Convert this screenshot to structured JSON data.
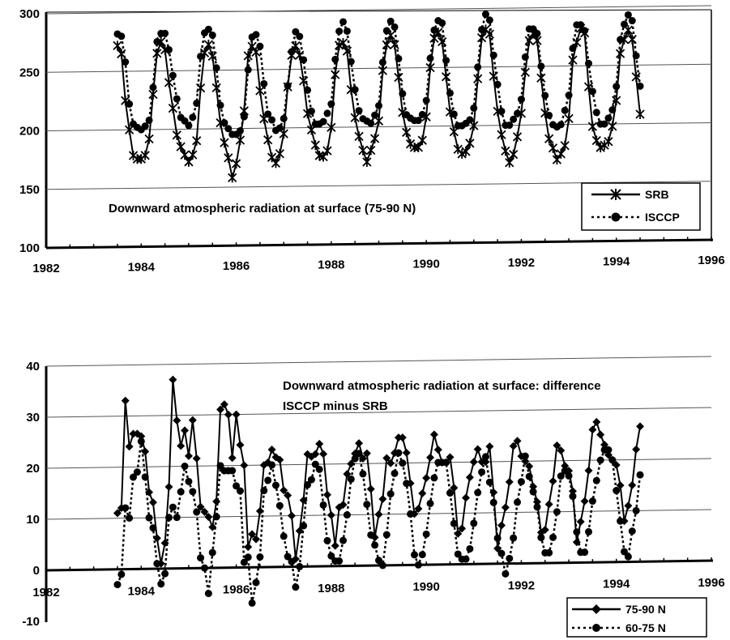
{
  "chart_data": [
    {
      "type": "line",
      "title": "Downward atmospheric radiation at surface (75-90 N)",
      "xlim": [
        1982,
        1996
      ],
      "ylim": [
        100,
        300
      ],
      "x_ticks": [
        "1982",
        "1984",
        "1986",
        "1988",
        "1990",
        "1992",
        "1994",
        "1996"
      ],
      "y_ticks": [
        "100",
        "150",
        "200",
        "250",
        "300"
      ],
      "grid": true,
      "legend_position": "bottom-right",
      "series": [
        {
          "name": "SRB",
          "color": "#000000",
          "marker": "asterisk",
          "line": "solid",
          "x_start": 1983.5,
          "values": [
            272,
            265,
            225,
            200,
            178,
            175,
            175,
            178,
            192,
            230,
            265,
            275,
            268,
            240,
            218,
            195,
            185,
            178,
            172,
            178,
            190,
            235,
            265,
            272,
            262,
            235,
            205,
            188,
            175,
            158,
            170,
            190,
            215,
            262,
            270,
            265,
            232,
            208,
            190,
            175,
            170,
            178,
            195,
            235,
            262,
            270,
            262,
            240,
            212,
            198,
            185,
            176,
            175,
            180,
            200,
            245,
            270,
            272,
            265,
            232,
            208,
            192,
            180,
            170,
            180,
            190,
            205,
            248,
            270,
            278,
            270,
            242,
            212,
            195,
            185,
            182,
            182,
            188,
            208,
            250,
            275,
            280,
            272,
            242,
            212,
            195,
            180,
            176,
            178,
            185,
            200,
            240,
            275,
            282,
            278,
            242,
            212,
            192,
            178,
            168,
            175,
            190,
            210,
            245,
            272,
            278,
            272,
            240,
            210,
            188,
            180,
            170,
            175,
            182,
            205,
            255,
            270,
            282,
            278,
            232,
            198,
            186,
            180,
            182,
            185,
            198,
            220,
            260,
            272,
            280,
            272,
            240,
            208
          ]
        },
        {
          "name": "ISCCP",
          "color": "#000000",
          "marker": "circle",
          "line": "dotted",
          "x_start": 1983.5,
          "values": [
            282,
            280,
            258,
            222,
            205,
            202,
            200,
            203,
            208,
            236,
            275,
            282,
            282,
            268,
            246,
            226,
            210,
            207,
            203,
            210,
            222,
            262,
            282,
            285,
            280,
            252,
            220,
            205,
            200,
            195,
            195,
            198,
            210,
            250,
            278,
            280,
            270,
            238,
            212,
            207,
            198,
            200,
            208,
            236,
            265,
            282,
            278,
            258,
            232,
            214,
            203,
            203,
            205,
            212,
            220,
            258,
            282,
            290,
            282,
            256,
            232,
            214,
            207,
            205,
            203,
            210,
            218,
            255,
            282,
            290,
            285,
            258,
            228,
            210,
            207,
            205,
            205,
            210,
            222,
            258,
            282,
            290,
            288,
            256,
            228,
            210,
            200,
            200,
            202,
            205,
            215,
            250,
            282,
            295,
            290,
            260,
            235,
            212,
            200,
            200,
            205,
            210,
            222,
            258,
            282,
            282,
            278,
            250,
            225,
            208,
            200,
            198,
            200,
            212,
            225,
            265,
            285,
            285,
            280,
            252,
            228,
            210,
            200,
            200,
            205,
            212,
            232,
            272,
            285,
            293,
            288,
            258,
            232
          ]
        }
      ]
    },
    {
      "type": "line",
      "title": "Downward atmospheric radiation at surface: difference ISCCP minus SRB",
      "xlim": [
        1982,
        1996
      ],
      "ylim": [
        -10,
        40
      ],
      "x_ticks": [
        "1982",
        "1984",
        "1986",
        "1988",
        "1990",
        "1992",
        "1994",
        "1996"
      ],
      "y_ticks": [
        "-10",
        "0",
        "10",
        "20",
        "30",
        "40"
      ],
      "grid": true,
      "legend_position": "bottom-right",
      "series": [
        {
          "name": "75-90 N",
          "color": "#000000",
          "marker": "diamond",
          "line": "solid",
          "x_start": 1983.5,
          "values": [
            11,
            12,
            33,
            24,
            26.5,
            26.5,
            26,
            23,
            15,
            13,
            6,
            1,
            5,
            16,
            37,
            29,
            24,
            27,
            22,
            29,
            21.5,
            12,
            11,
            10,
            8,
            13,
            31,
            32,
            30,
            21.5,
            30,
            24,
            20,
            4,
            6.5,
            5.5,
            11,
            20,
            20.5,
            23,
            21.5,
            21,
            15,
            14,
            10,
            1.5,
            7,
            13,
            22,
            21.5,
            22,
            24,
            22,
            14,
            10,
            4,
            11.5,
            12,
            18,
            20,
            22,
            24,
            21,
            22,
            15,
            5.5,
            10,
            13,
            21,
            20,
            22,
            25,
            25,
            22,
            16,
            10,
            11,
            14,
            17,
            21,
            25.5,
            22.5,
            20,
            20,
            21,
            15,
            6,
            7,
            13,
            17,
            20,
            22.5,
            20,
            20,
            23,
            14,
            3,
            7.5,
            11,
            16,
            23,
            24,
            21,
            20,
            19,
            15,
            12,
            6,
            6.5,
            11.5,
            16,
            23,
            22,
            19,
            18,
            14,
            4,
            8,
            12,
            18,
            26,
            27.5,
            25,
            23,
            21,
            20,
            19,
            15,
            8,
            11,
            15,
            22,
            26.5
          ]
        },
        {
          "name": "60-75 N",
          "color": "#000000",
          "marker": "circle",
          "line": "dotted",
          "x_start": 1983.5,
          "values": [
            -3,
            -1,
            12,
            10,
            18,
            19,
            25,
            18,
            10,
            8,
            1,
            -3,
            -1,
            10,
            12,
            10,
            15,
            20,
            17,
            15,
            11,
            2,
            0,
            -5,
            3,
            10,
            20,
            19,
            19,
            19,
            16,
            15,
            1,
            2,
            -7,
            -3,
            2,
            15,
            17,
            20,
            16,
            12,
            6,
            2,
            1,
            -4,
            0,
            8,
            16,
            17,
            20,
            19,
            12,
            5,
            2,
            1,
            1,
            5,
            10,
            17,
            21,
            22,
            18,
            12,
            6,
            4,
            1,
            0,
            6,
            14,
            18,
            22,
            20,
            16,
            10,
            2,
            0,
            2,
            6,
            12,
            17,
            20,
            20,
            20,
            14,
            8,
            2,
            1,
            1,
            3,
            8,
            14,
            18,
            21,
            16,
            12,
            5,
            2,
            -2,
            1,
            5,
            12,
            16,
            21,
            17,
            14,
            11,
            5,
            2,
            2,
            5,
            10,
            17,
            18,
            17,
            13,
            6,
            2,
            2,
            6,
            12,
            16,
            20,
            22,
            22,
            20,
            14,
            8,
            2,
            1,
            6,
            10,
            17
          ]
        }
      ]
    }
  ]
}
